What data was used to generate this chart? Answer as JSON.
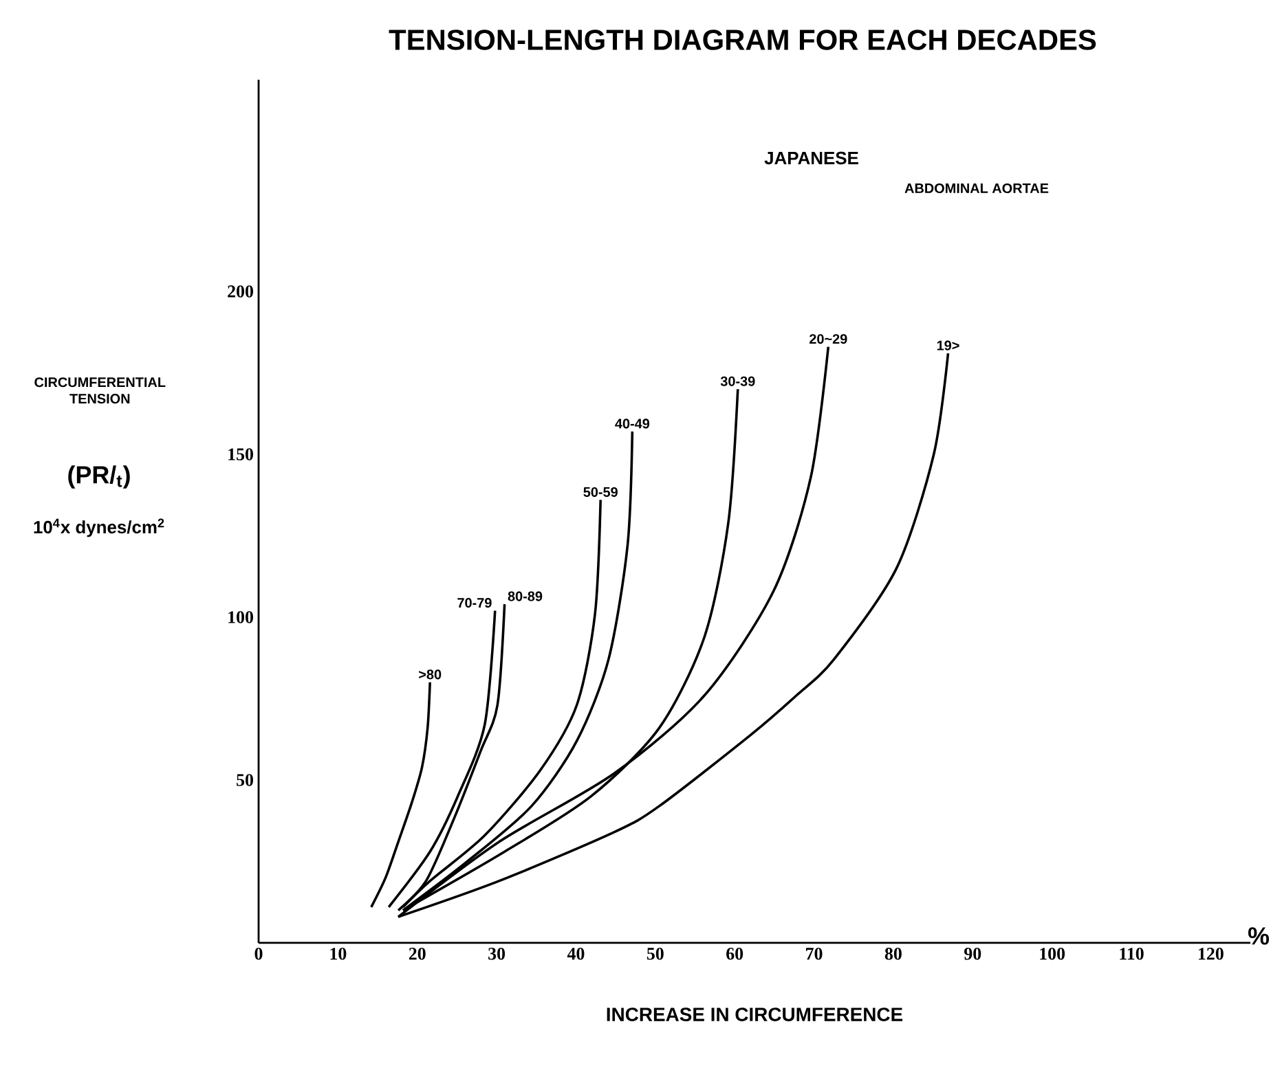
{
  "chart_data": {
    "type": "line",
    "title": "TENSION-LENGTH DIAGRAM FOR EACH DECADES",
    "xlabel": "INCREASE IN CIRCUMFERENCE",
    "ylabel": "CIRCUMFERENTIAL TENSION",
    "annotations": [
      "(PR/$_{t}$)",
      "10$^{4}$x dynes/cm$^{2}$",
      "%",
      "JAPANESE",
      "ABDOMINAL AORTAE"
    ],
    "xlim": [
      0,
      125
    ],
    "ylim": [
      0,
      265
    ],
    "xticks": [
      0,
      10,
      20,
      30,
      40,
      50,
      60,
      70,
      80,
      90,
      100,
      110,
      120
    ],
    "yticks": [
      50,
      100,
      150,
      200
    ],
    "grid": false,
    "marker": "none",
    "line_style": "solid",
    "series": [
      {
        "name": ">80",
        "color": "#000000",
        "x": [
          14.2,
          16,
          17.6,
          19.3,
          20.6,
          21.3,
          21.6
        ],
        "values": [
          11,
          20,
          31,
          43,
          54,
          66,
          80
        ]
      },
      {
        "name": "70-79",
        "color": "#000000",
        "x": [
          16.4,
          21.6,
          25.1,
          28.5,
          29.8
        ],
        "values": [
          11,
          28,
          45,
          67,
          102
        ]
      },
      {
        "name": "80-89",
        "color": "#000000",
        "x": [
          17.6,
          21.1,
          24.6,
          28,
          30.1,
          31
        ],
        "values": [
          10,
          19,
          38,
          59,
          73,
          104
        ]
      },
      {
        "name": "50-59",
        "color": "#000000",
        "x": [
          18.2,
          21.6,
          28.5,
          35.5,
          40.1,
          42.4,
          43.1
        ],
        "values": [
          11,
          19,
          33,
          53,
          73,
          101,
          136
        ]
      },
      {
        "name": "40-49",
        "color": "#000000",
        "x": [
          18.2,
          26.3,
          34.4,
          40.1,
          44.1,
          46.5,
          47.1
        ],
        "values": [
          10,
          25,
          42,
          62,
          87,
          122,
          157
        ]
      },
      {
        "name": "30-39",
        "color": "#000000",
        "x": [
          18.2,
          31,
          41.9,
          50.5,
          56.2,
          59.2,
          60.4
        ],
        "values": [
          10,
          28,
          45,
          66,
          94,
          129,
          170
        ]
      },
      {
        "name": "20~29",
        "color": "#000000",
        "x": [
          17.6,
          30.3,
          44.8,
          56.2,
          64.9,
          69.6,
          71.8
        ],
        "values": [
          8,
          31,
          52,
          76,
          108,
          143,
          183
        ]
      },
      {
        "name": "19>",
        "color": "#000000",
        "x": [
          17.6,
          30.3,
          44.8,
          50.5,
          62.1,
          67.8,
          72.5,
          80.4,
          85.1,
          86.9
        ],
        "values": [
          8,
          19,
          34,
          42,
          64,
          76,
          87,
          115,
          150,
          181
        ]
      }
    ]
  }
}
